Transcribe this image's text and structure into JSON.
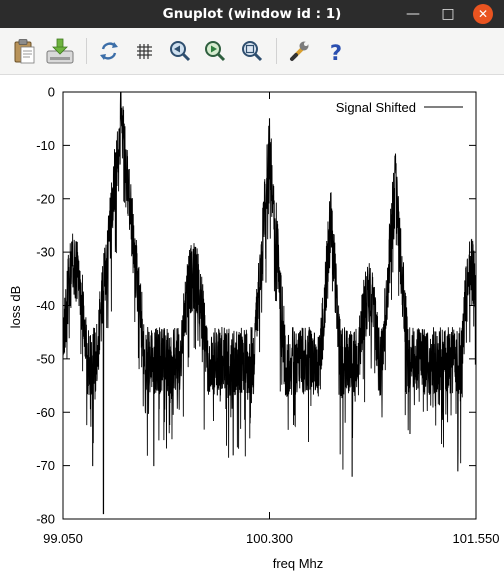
{
  "window": {
    "title": "Gnuplot (window id : 1)",
    "minimize_glyph": "—",
    "maximize_glyph": "□",
    "close_glyph": "✕"
  },
  "toolbar": {
    "buttons": [
      {
        "name": "copy-to-clipboard",
        "icon": "clipboard-icon"
      },
      {
        "name": "export",
        "icon": "export-icon"
      },
      {
        "name": "replot",
        "icon": "replot-icon"
      },
      {
        "name": "grid",
        "icon": "grid-icon"
      },
      {
        "name": "zoom-previous",
        "icon": "zoom-previous-icon"
      },
      {
        "name": "zoom-next",
        "icon": "zoom-next-icon"
      },
      {
        "name": "autoscale",
        "icon": "autoscale-icon"
      },
      {
        "name": "settings",
        "icon": "wrench-icon"
      },
      {
        "name": "help",
        "icon": "help-icon"
      }
    ]
  },
  "chart_data": {
    "type": "line",
    "xlabel": "freq Mhz",
    "ylabel": "loss dB",
    "x_tick_labels": [
      "99.050",
      "100.300",
      "101.550"
    ],
    "y_ticks": [
      0,
      -10,
      -20,
      -30,
      -40,
      -50,
      -60,
      -70,
      -80
    ],
    "xlim": [
      99.05,
      101.55
    ],
    "ylim": [
      -80,
      0
    ],
    "legend": "top-right",
    "grid": false,
    "series": [
      {
        "name": "Signal Shifted",
        "color": "#000000",
        "base_noise_db": -44,
        "peaks": [
          {
            "freq": 99.4,
            "level": 0,
            "width": 0.11
          },
          {
            "freq": 100.3,
            "level": -5,
            "width": 0.08
          },
          {
            "freq": 100.67,
            "level": -19,
            "width": 0.08
          },
          {
            "freq": 101.06,
            "level": -12,
            "width": 0.08
          }
        ],
        "shoulders": [
          {
            "freq": 99.12,
            "level": -29,
            "width": 0.08
          },
          {
            "freq": 99.84,
            "level": -31,
            "width": 0.09
          },
          {
            "freq": 100.9,
            "level": -35,
            "width": 0.08
          },
          {
            "freq": 101.52,
            "level": -30,
            "width": 0.06
          }
        ],
        "dips": [
          {
            "freq": 99.295,
            "level": -79
          },
          {
            "freq": 99.23,
            "level": -70
          },
          {
            "freq": 99.6,
            "level": -70
          },
          {
            "freq": 100.08,
            "level": -68
          },
          {
            "freq": 100.8,
            "level": -72
          },
          {
            "freq": 101.15,
            "level": -64
          },
          {
            "freq": 101.44,
            "level": -71
          }
        ]
      }
    ]
  }
}
